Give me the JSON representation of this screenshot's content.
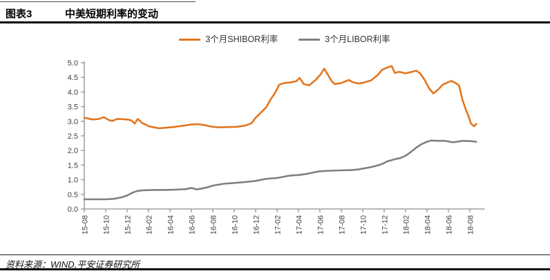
{
  "header": {
    "chart_number": "图表3",
    "title": "中美短期利率的变动"
  },
  "legend": {
    "items": [
      {
        "label": "3个月SHIBOR利率",
        "color": "#e2751d"
      },
      {
        "label": "3个月LIBOR利率",
        "color": "#7f7f7f"
      }
    ]
  },
  "footer": {
    "source": "资料来源：WIND,平安证券研究所"
  },
  "colors": {
    "shibor_orange": "#e2751d",
    "libor_gray": "#7f7f7f",
    "axis": "#8c8c8c",
    "tick_text": "#3f3f3f"
  },
  "chart_data": {
    "type": "line",
    "title": "中美短期利率的变动",
    "xlabel": "",
    "ylabel": "",
    "grid": false,
    "legend_position": "top-center",
    "x_unit": "months since 2015-08",
    "xlim": [
      0,
      37.4
    ],
    "ylim": [
      0,
      5.0
    ],
    "y_tick_labels": [
      "0.0",
      "0.5",
      "1.0",
      "1.5",
      "2.0",
      "2.5",
      "3.0",
      "3.5",
      "4.0",
      "4.5",
      "5.0"
    ],
    "x_tick_months": [
      0,
      2,
      4,
      6,
      8,
      10,
      12,
      14,
      16,
      18,
      20,
      22,
      24,
      26,
      28,
      30,
      32,
      34,
      36
    ],
    "x_tick_labels": [
      "15-08",
      "15-10",
      "15-12",
      "16-02",
      "16-04",
      "16-06",
      "16-08",
      "16-10",
      "16-12",
      "17-02",
      "17-04",
      "17-06",
      "17-08",
      "17-10",
      "17-12",
      "18-02",
      "18-04",
      "18-06",
      "18-08"
    ],
    "series": [
      {
        "name": "3个月SHIBOR利率",
        "key": "shibor-line",
        "color": "#e2751d",
        "points": [
          [
            0,
            3.12
          ],
          [
            0.8,
            3.06
          ],
          [
            1.4,
            3.08
          ],
          [
            1.8,
            3.14
          ],
          [
            2.3,
            3.04
          ],
          [
            2.6,
            3.01
          ],
          [
            3.1,
            3.08
          ],
          [
            3.6,
            3.07
          ],
          [
            4,
            3.06
          ],
          [
            4.4,
            3.03
          ],
          [
            4.7,
            2.92
          ],
          [
            5,
            3.08
          ],
          [
            5.4,
            2.94
          ],
          [
            5.7,
            2.89
          ],
          [
            6,
            2.83
          ],
          [
            6.5,
            2.79
          ],
          [
            7,
            2.76
          ],
          [
            7.7,
            2.78
          ],
          [
            8.5,
            2.81
          ],
          [
            9.3,
            2.85
          ],
          [
            10,
            2.89
          ],
          [
            10.6,
            2.9
          ],
          [
            11.2,
            2.87
          ],
          [
            11.8,
            2.82
          ],
          [
            12.5,
            2.79
          ],
          [
            13.3,
            2.8
          ],
          [
            14.2,
            2.81
          ],
          [
            15,
            2.85
          ],
          [
            15.6,
            2.93
          ],
          [
            16,
            3.12
          ],
          [
            16.5,
            3.3
          ],
          [
            17,
            3.48
          ],
          [
            17.4,
            3.75
          ],
          [
            17.8,
            3.96
          ],
          [
            18.2,
            4.25
          ],
          [
            18.7,
            4.31
          ],
          [
            19.3,
            4.33
          ],
          [
            19.8,
            4.37
          ],
          [
            20.1,
            4.48
          ],
          [
            20.5,
            4.27
          ],
          [
            21,
            4.23
          ],
          [
            21.6,
            4.41
          ],
          [
            22.1,
            4.62
          ],
          [
            22.4,
            4.8
          ],
          [
            22.7,
            4.62
          ],
          [
            23.1,
            4.37
          ],
          [
            23.4,
            4.27
          ],
          [
            24,
            4.31
          ],
          [
            24.7,
            4.41
          ],
          [
            25.1,
            4.33
          ],
          [
            25.6,
            4.29
          ],
          [
            26.1,
            4.32
          ],
          [
            26.8,
            4.4
          ],
          [
            27.4,
            4.58
          ],
          [
            27.8,
            4.76
          ],
          [
            28.3,
            4.84
          ],
          [
            28.7,
            4.89
          ],
          [
            29,
            4.65
          ],
          [
            29.4,
            4.69
          ],
          [
            30,
            4.64
          ],
          [
            30.6,
            4.69
          ],
          [
            31,
            4.73
          ],
          [
            31.4,
            4.62
          ],
          [
            31.8,
            4.4
          ],
          [
            32.2,
            4.12
          ],
          [
            32.6,
            3.95
          ],
          [
            33,
            4.07
          ],
          [
            33.5,
            4.26
          ],
          [
            34,
            4.34
          ],
          [
            34.3,
            4.38
          ],
          [
            34.7,
            4.3
          ],
          [
            35,
            4.22
          ],
          [
            35.3,
            3.75
          ],
          [
            35.6,
            3.42
          ],
          [
            35.9,
            3.15
          ],
          [
            36.1,
            2.92
          ],
          [
            36.4,
            2.83
          ],
          [
            36.6,
            2.91
          ]
        ]
      },
      {
        "name": "3个月LIBOR利率",
        "key": "libor-line",
        "color": "#7f7f7f",
        "points": [
          [
            0,
            0.33
          ],
          [
            1,
            0.33
          ],
          [
            2,
            0.33
          ],
          [
            2.8,
            0.35
          ],
          [
            3.5,
            0.4
          ],
          [
            4,
            0.46
          ],
          [
            4.5,
            0.56
          ],
          [
            5,
            0.62
          ],
          [
            5.5,
            0.64
          ],
          [
            6.5,
            0.65
          ],
          [
            7.5,
            0.65
          ],
          [
            8.5,
            0.66
          ],
          [
            9.5,
            0.68
          ],
          [
            10,
            0.72
          ],
          [
            10.5,
            0.67
          ],
          [
            11,
            0.7
          ],
          [
            11.5,
            0.74
          ],
          [
            12,
            0.8
          ],
          [
            13,
            0.86
          ],
          [
            14,
            0.89
          ],
          [
            15,
            0.92
          ],
          [
            16,
            0.96
          ],
          [
            17,
            1.03
          ],
          [
            18,
            1.06
          ],
          [
            19,
            1.13
          ],
          [
            19.5,
            1.15
          ],
          [
            20,
            1.16
          ],
          [
            20.8,
            1.2
          ],
          [
            21.5,
            1.26
          ],
          [
            22,
            1.29
          ],
          [
            23,
            1.31
          ],
          [
            24,
            1.32
          ],
          [
            25,
            1.33
          ],
          [
            25.5,
            1.35
          ],
          [
            26,
            1.38
          ],
          [
            26.6,
            1.42
          ],
          [
            27,
            1.45
          ],
          [
            27.5,
            1.5
          ],
          [
            28,
            1.57
          ],
          [
            28.3,
            1.63
          ],
          [
            28.6,
            1.66
          ],
          [
            29,
            1.7
          ],
          [
            29.5,
            1.74
          ],
          [
            30,
            1.82
          ],
          [
            30.5,
            1.95
          ],
          [
            31,
            2.1
          ],
          [
            31.5,
            2.22
          ],
          [
            32,
            2.3
          ],
          [
            32.4,
            2.34
          ],
          [
            33,
            2.33
          ],
          [
            33.6,
            2.33
          ],
          [
            34,
            2.31
          ],
          [
            34.4,
            2.28
          ],
          [
            34.8,
            2.3
          ],
          [
            35.3,
            2.33
          ],
          [
            36,
            2.32
          ],
          [
            36.6,
            2.3
          ]
        ]
      }
    ]
  }
}
